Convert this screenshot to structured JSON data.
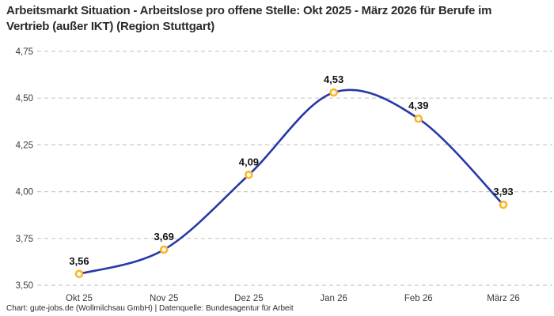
{
  "header": {
    "title": "Arbeitsmarkt Situation - Arbeitslose pro offene Stelle: Okt 2025 - März 2026 für Berufe im Vertrieb (außer IKT) (Region Stuttgart)"
  },
  "chart_data": {
    "type": "line",
    "title": "Arbeitsmarkt Situation - Arbeitslose pro offene Stelle: Okt 2025 - März 2026 für Berufe im Vertrieb (außer IKT) (Region Stuttgart)",
    "categories": [
      "Okt 25",
      "Nov 25",
      "Dez 25",
      "Jan 26",
      "Feb 26",
      "März 26"
    ],
    "values": [
      3.56,
      3.69,
      4.09,
      4.53,
      4.39,
      3.93
    ],
    "value_labels": [
      "3,56",
      "3,69",
      "4,09",
      "4,53",
      "4,39",
      "3,93"
    ],
    "yticks": {
      "values": [
        3.5,
        3.75,
        4.0,
        4.25,
        4.5,
        4.75
      ],
      "labels": [
        "3,50",
        "3,75",
        "4,00",
        "4,25",
        "4,50",
        "4,75"
      ]
    },
    "ylim": [
      3.5,
      4.75
    ],
    "xlabel": "",
    "ylabel": "",
    "grid": "dashed-horizontal",
    "legend": "none",
    "colors": {
      "line": "#2838a6",
      "marker_fill": "#ffffff",
      "marker_stroke": "#fcb525",
      "gridline": "#c9c9c9",
      "tick_text": "#3c3c3c",
      "data_label_text": "#111111"
    }
  },
  "footer": {
    "text": "Chart: gute-jobs.de (Wollmilchsau GmbH) | Datenquelle: Bundesagentur für Arbeit"
  }
}
